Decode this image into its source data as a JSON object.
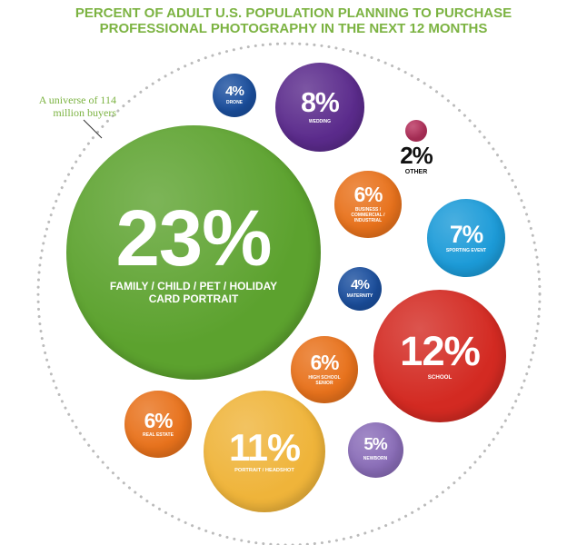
{
  "chart_data": {
    "type": "bubble",
    "title": "PERCENT OF ADULT U.S. POPULATION PLANNING TO PURCHASE PROFESSIONAL PHOTOGRAPHY IN THE NEXT 12 MONTHS",
    "annotation": "A universe of 114 million buyers",
    "categories": [
      "DRONE",
      "WEDDING",
      "OTHER",
      "BUSINESS / COMMERCIAL / INDUSTRIAL",
      "SPORTING EVENT",
      "FAMILY / CHILD / PET / HOLIDAY CARD PORTRAIT",
      "MATERNITY",
      "SCHOOL",
      "HIGH SCHOOL SENIOR",
      "REAL ESTATE",
      "PORTRAIT / HEADSHOT",
      "NEWBORN"
    ],
    "values": [
      4,
      8,
      2,
      6,
      7,
      23,
      4,
      12,
      6,
      6,
      11,
      5
    ],
    "value_labels": [
      "4%",
      "8%",
      "2%",
      "6%",
      "7%",
      "23%",
      "4%",
      "12%",
      "6%",
      "6%",
      "11%",
      "5%"
    ],
    "colors": [
      "#1b4f9e",
      "#5b2b8c",
      "#b8325e",
      "#e8721c",
      "#1c9bd8",
      "#5ca22e",
      "#1b4f9e",
      "#d32a22",
      "#e8721c",
      "#e8721c",
      "#efb43a",
      "#8a6db8"
    ]
  }
}
